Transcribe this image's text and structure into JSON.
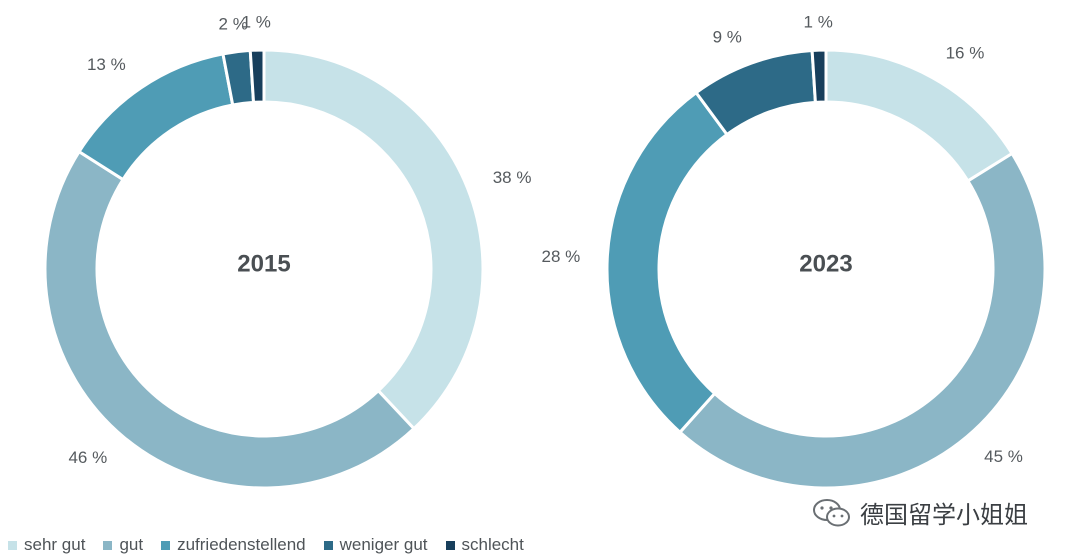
{
  "colors": {
    "sehr_gut": "#c6e2e8",
    "gut": "#8bb6c6",
    "zufriedenstellend": "#4f9cb5",
    "weniger_gut": "#2d6a87",
    "schlecht": "#183f5c"
  },
  "chart_data": [
    {
      "type": "pie",
      "donut": true,
      "title": "2015",
      "categories": [
        "sehr gut",
        "gut",
        "zufriedenstellend",
        "weniger gut",
        "schlecht"
      ],
      "values": [
        38,
        46,
        13,
        2,
        1
      ],
      "labels": [
        "38 %",
        "46 %",
        "13 %",
        "2 %",
        "1 %"
      ]
    },
    {
      "type": "pie",
      "donut": true,
      "title": "2023",
      "categories": [
        "sehr gut",
        "gut",
        "zufriedenstellend",
        "weniger gut",
        "schlecht"
      ],
      "values": [
        16,
        45,
        28,
        9,
        1
      ],
      "labels": [
        "16 %",
        "45 %",
        "28 %",
        "9 %",
        "1 %"
      ]
    }
  ],
  "legend": {
    "items": [
      {
        "label": "sehr gut",
        "color": "#c6e2e8"
      },
      {
        "label": "gut",
        "color": "#8bb6c6"
      },
      {
        "label": "zufriedenstellend",
        "color": "#4f9cb5"
      },
      {
        "label": "weniger gut",
        "color": "#2d6a87"
      },
      {
        "label": "schlecht",
        "color": "#183f5c"
      }
    ]
  },
  "watermark": {
    "text": "德国留学小姐姐",
    "icon": "wechat-icon"
  }
}
